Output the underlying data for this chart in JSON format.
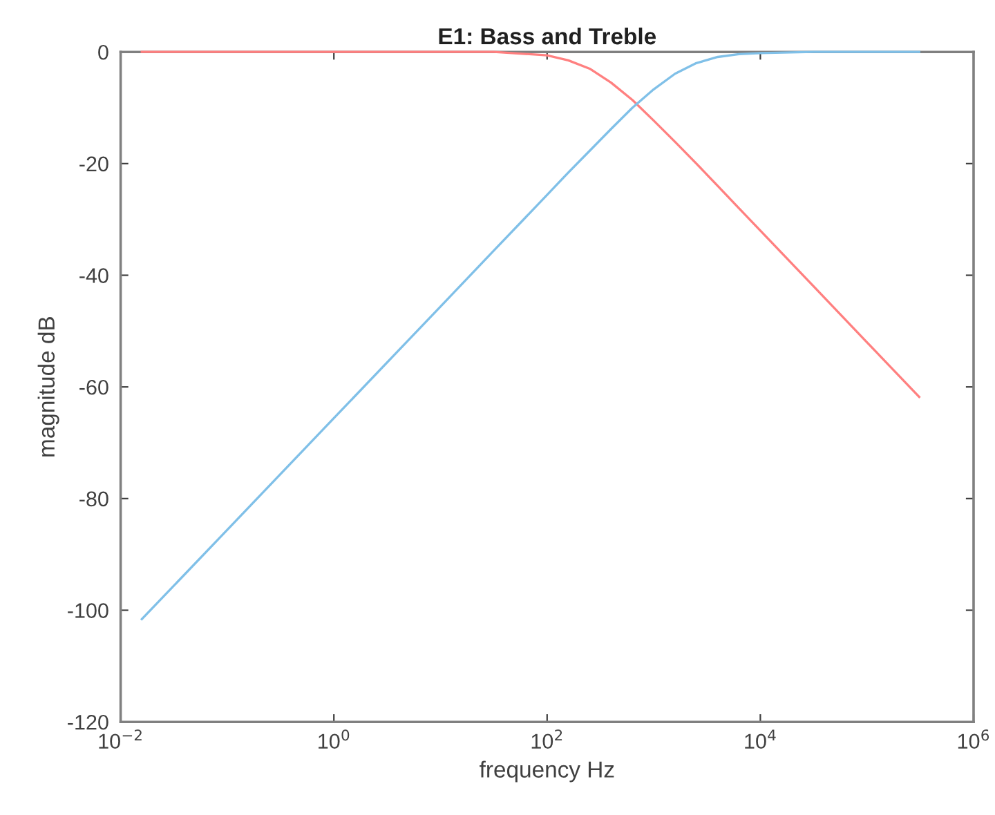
{
  "chart_data": {
    "type": "line",
    "title": "E1: Bass and Treble",
    "xlabel": "frequency Hz",
    "ylabel": "magnitude dB",
    "x": [
      0.0158,
      0.1,
      1,
      10,
      31.6,
      100,
      158,
      251,
      398,
      631,
      1000,
      1585,
      2512,
      3981,
      6310,
      10000,
      31623,
      100000,
      309000
    ],
    "series": [
      {
        "color": "#ff8080",
        "values": [
          0,
          0,
          0,
          0,
          0,
          -0.6,
          -1.5,
          -3,
          -5.5,
          -8.6,
          -12.3,
          -16.1,
          -20,
          -24,
          -28,
          -32,
          -42,
          -52,
          -61.8
        ]
      },
      {
        "color": "#80c0e8",
        "values": [
          -101.6,
          -85.6,
          -65.6,
          -45.6,
          -35.6,
          -25.6,
          -21.6,
          -17.7,
          -13.8,
          -10,
          -6.7,
          -3.9,
          -2,
          -0.9,
          -0.4,
          -0.2,
          0,
          0,
          0
        ]
      }
    ],
    "log": "x",
    "xlim": [
      0.01,
      1000000
    ],
    "ylim": [
      -120,
      0
    ],
    "xticks": [
      {
        "value": 0.01,
        "label": "10$^{−2}$"
      },
      {
        "value": 1,
        "label": "10$^{0}$"
      },
      {
        "value": 100,
        "label": "10$^{2}$"
      },
      {
        "value": 10000,
        "label": "10$^{4}$"
      },
      {
        "value": 1000000,
        "label": "10$^{6}$"
      }
    ],
    "yticks": [
      -120,
      -100,
      -80,
      -60,
      -40,
      -20,
      0
    ],
    "grid": false,
    "marker": "none",
    "line_style": "solid"
  }
}
